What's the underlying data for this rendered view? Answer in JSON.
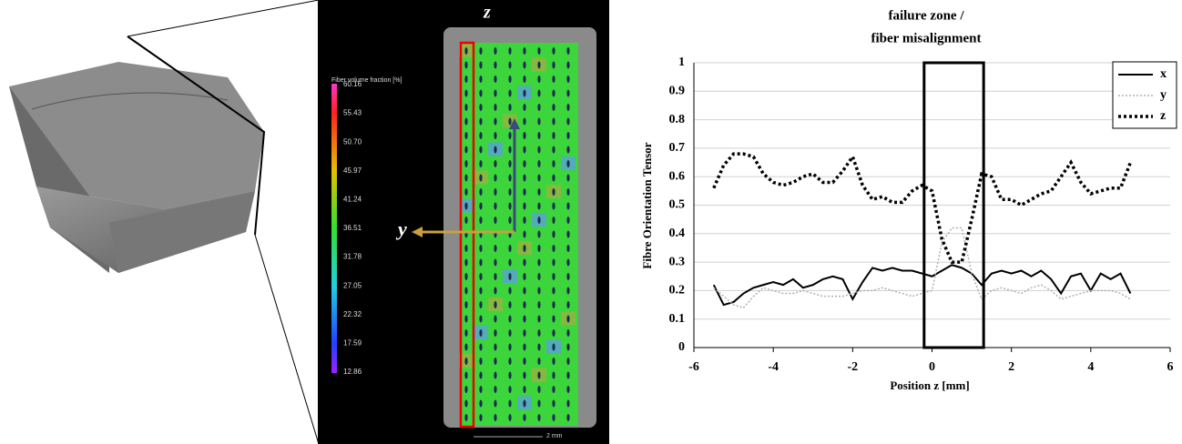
{
  "chart_data": {
    "type": "line",
    "title": [
      "failure zone /",
      "fiber misalignment"
    ],
    "x_label": "Position z [mm]",
    "y_label": "Fibre Orientation Tensor",
    "x": [
      -5.5,
      -5.25,
      -5,
      -4.75,
      -4.5,
      -4.25,
      -4,
      -3.75,
      -3.5,
      -3.25,
      -3,
      -2.75,
      -2.5,
      -2.25,
      -2,
      -1.75,
      -1.5,
      -1.25,
      -1,
      -0.75,
      -0.5,
      -0.25,
      0,
      0.25,
      0.5,
      0.75,
      1,
      1.25,
      1.5,
      1.75,
      2,
      2.25,
      2.5,
      2.75,
      3,
      3.25,
      3.5,
      3.75,
      4,
      4.25,
      4.5,
      4.75,
      5
    ],
    "series": [
      {
        "name": "x",
        "color": "#000000",
        "dash": "solid",
        "values": [
          0.22,
          0.15,
          0.16,
          0.19,
          0.21,
          0.22,
          0.23,
          0.22,
          0.24,
          0.21,
          0.22,
          0.24,
          0.25,
          0.24,
          0.17,
          0.23,
          0.28,
          0.27,
          0.28,
          0.27,
          0.27,
          0.26,
          0.25,
          0.27,
          0.29,
          0.28,
          0.26,
          0.22,
          0.26,
          0.27,
          0.26,
          0.27,
          0.25,
          0.27,
          0.24,
          0.19,
          0.25,
          0.26,
          0.2,
          0.26,
          0.24,
          0.26,
          0.19
        ]
      },
      {
        "name": "y",
        "color": "#b0b0b0",
        "dash": "dot",
        "values": [
          0.21,
          0.18,
          0.15,
          0.14,
          0.18,
          0.21,
          0.2,
          0.19,
          0.19,
          0.2,
          0.19,
          0.18,
          0.18,
          0.18,
          0.19,
          0.2,
          0.2,
          0.21,
          0.2,
          0.19,
          0.18,
          0.19,
          0.2,
          0.37,
          0.42,
          0.42,
          0.26,
          0.17,
          0.2,
          0.21,
          0.2,
          0.19,
          0.21,
          0.22,
          0.2,
          0.17,
          0.18,
          0.19,
          0.2,
          0.2,
          0.2,
          0.19,
          0.17
        ]
      },
      {
        "name": "z",
        "color": "#000000",
        "dash": "dotbold",
        "values": [
          0.56,
          0.64,
          0.68,
          0.68,
          0.67,
          0.61,
          0.58,
          0.57,
          0.58,
          0.6,
          0.61,
          0.58,
          0.58,
          0.62,
          0.67,
          0.57,
          0.52,
          0.53,
          0.51,
          0.51,
          0.55,
          0.57,
          0.55,
          0.38,
          0.3,
          0.3,
          0.45,
          0.61,
          0.6,
          0.52,
          0.52,
          0.5,
          0.52,
          0.54,
          0.55,
          0.6,
          0.65,
          0.58,
          0.54,
          0.55,
          0.56,
          0.56,
          0.65
        ]
      }
    ],
    "xlim": [
      -6,
      6
    ],
    "xticks": [
      -6,
      -4,
      -2,
      0,
      2,
      4,
      6
    ],
    "ylim": [
      0,
      1
    ],
    "yticks": [
      0,
      0.1,
      0.2,
      0.3,
      0.4,
      0.5,
      0.6,
      0.7,
      0.8,
      0.9,
      1
    ],
    "grid": true,
    "legend": "top-right",
    "failure_zone_x": [
      -0.2,
      1.3
    ]
  },
  "ct_panel": {
    "colorbar_title": "Fiber volume fraction [%]",
    "colorbar_ticks": [
      "60.16",
      "55.43",
      "50.70",
      "45.97",
      "41.24",
      "36.51",
      "31.78",
      "27.05",
      "22.32",
      "17.59",
      "12.86"
    ],
    "z_label": "z",
    "y_label": "y",
    "scale_label": "2 mm"
  }
}
